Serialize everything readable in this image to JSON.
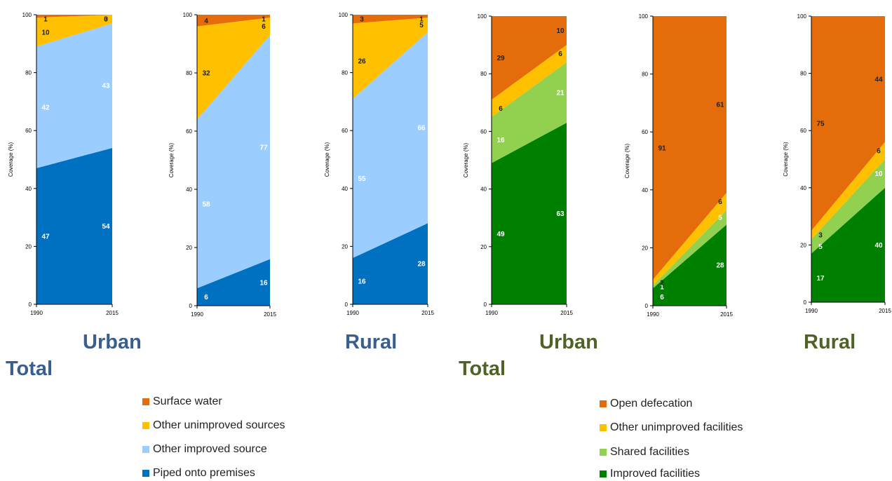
{
  "colors": {
    "surface_water": "#e46c0a",
    "other_unimproved_sources": "#ffc000",
    "other_improved_source": "#9ccdff",
    "piped_onto_premises": "#0070c0",
    "open_defecation": "#e46c0a",
    "other_unimproved_facilities": "#ffc000",
    "shared_facilities": "#92d050",
    "improved_facilities": "#008000"
  },
  "captions": {
    "water_urban": "Urban",
    "water_rural": "Rural",
    "water_total": "Total",
    "sanitation_urban": "Urban",
    "sanitation_rural": "Rural",
    "sanitation_total": "Total"
  },
  "legends": {
    "water": [
      "Surface water",
      "Other unimproved sources",
      "Other improved source",
      "Piped onto premises"
    ],
    "sanitation": [
      "Open defecation",
      "Other unimproved facilities",
      "Shared facilities",
      "Improved facilities"
    ]
  },
  "chart_data": [
    {
      "type": "area",
      "stacked": true,
      "ylabel": "Coverage (%)",
      "x": [
        "1990",
        "2015"
      ],
      "ylim": [
        0,
        100
      ],
      "yticks": [
        "0",
        "20",
        "40",
        "60",
        "80",
        "100"
      ],
      "series": [
        {
          "name": "Piped onto premises",
          "values": [
            47,
            54
          ],
          "labels": [
            "47",
            "54"
          ]
        },
        {
          "name": "Other improved source",
          "values": [
            42,
            43
          ],
          "labels": [
            "42",
            "43"
          ]
        },
        {
          "name": "Other unimproved sources",
          "values": [
            10,
            3
          ],
          "labels": [
            "10",
            "3"
          ]
        },
        {
          "name": "Surface water",
          "values": [
            1,
            0
          ],
          "labels": [
            "1",
            "0"
          ]
        }
      ]
    },
    {
      "type": "area",
      "stacked": true,
      "ylabel": "Coverage (%)",
      "x": [
        "1990",
        "2015"
      ],
      "ylim": [
        0,
        100
      ],
      "yticks": [
        "0",
        "20",
        "40",
        "60",
        "80",
        "100"
      ],
      "series": [
        {
          "name": "Piped onto premises",
          "values": [
            6,
            16
          ],
          "labels": [
            "6",
            "16"
          ]
        },
        {
          "name": "Other improved source",
          "values": [
            58,
            77
          ],
          "labels": [
            "58",
            "77"
          ]
        },
        {
          "name": "Other unimproved sources",
          "values": [
            32,
            6
          ],
          "labels": [
            "32",
            "6"
          ]
        },
        {
          "name": "Surface water",
          "values": [
            4,
            1
          ],
          "labels": [
            "4",
            "1"
          ]
        }
      ]
    },
    {
      "type": "area",
      "stacked": true,
      "ylabel": "Coverage (%)",
      "x": [
        "1990",
        "2015"
      ],
      "ylim": [
        0,
        100
      ],
      "yticks": [
        "0",
        "20",
        "40",
        "60",
        "80",
        "100"
      ],
      "series": [
        {
          "name": "Piped onto premises",
          "values": [
            16,
            28
          ],
          "labels": [
            "16",
            "28"
          ]
        },
        {
          "name": "Other improved source",
          "values": [
            55,
            66
          ],
          "labels": [
            "55",
            "66"
          ]
        },
        {
          "name": "Other unimproved sources",
          "values": [
            26,
            5
          ],
          "labels": [
            "26",
            "5"
          ]
        },
        {
          "name": "Surface water",
          "values": [
            3,
            1
          ],
          "labels": [
            "3",
            "1"
          ]
        }
      ]
    },
    {
      "type": "area",
      "stacked": true,
      "ylabel": "Coverage (%)",
      "x": [
        "1990",
        "2015"
      ],
      "ylim": [
        0,
        100
      ],
      "yticks": [
        "0",
        "20",
        "40",
        "60",
        "80",
        "100"
      ],
      "series": [
        {
          "name": "Improved facilities",
          "values": [
            49,
            63
          ],
          "labels": [
            "49",
            "63"
          ]
        },
        {
          "name": "Shared facilities",
          "values": [
            16,
            21
          ],
          "labels": [
            "16",
            "21"
          ]
        },
        {
          "name": "Other unimproved facilities",
          "values": [
            6,
            6
          ],
          "labels": [
            "6",
            "6"
          ]
        },
        {
          "name": "Open defecation",
          "values": [
            29,
            10
          ],
          "labels": [
            "29",
            "10"
          ]
        }
      ]
    },
    {
      "type": "area",
      "stacked": true,
      "ylabel": "Coverage (%)",
      "x": [
        "1990",
        "2015"
      ],
      "ylim": [
        0,
        100
      ],
      "yticks": [
        "0",
        "20",
        "40",
        "60",
        "80",
        "100"
      ],
      "series": [
        {
          "name": "Improved facilities",
          "values": [
            6,
            28
          ],
          "labels": [
            "6",
            "28"
          ]
        },
        {
          "name": "Shared facilities",
          "values": [
            1,
            5
          ],
          "labels": [
            "1",
            "5"
          ]
        },
        {
          "name": "Other unimproved facilities",
          "values": [
            2,
            6
          ],
          "labels": [
            "2",
            "6"
          ]
        },
        {
          "name": "Open defecation",
          "values": [
            91,
            61
          ],
          "labels": [
            "91",
            "61"
          ]
        }
      ]
    },
    {
      "type": "area",
      "stacked": true,
      "ylabel": "Coverage (%)",
      "x": [
        "1990",
        "2015"
      ],
      "ylim": [
        0,
        100
      ],
      "yticks": [
        "0",
        "20",
        "40",
        "60",
        "80",
        "100"
      ],
      "series": [
        {
          "name": "Improved facilities",
          "values": [
            17,
            40
          ],
          "labels": [
            "17",
            "40"
          ]
        },
        {
          "name": "Shared facilities",
          "values": [
            5,
            10
          ],
          "labels": [
            "5",
            "10"
          ]
        },
        {
          "name": "Other unimproved facilities",
          "values": [
            3,
            6
          ],
          "labels": [
            "3",
            "6"
          ]
        },
        {
          "name": "Open defecation",
          "values": [
            75,
            44
          ],
          "labels": [
            "75",
            "44"
          ]
        }
      ]
    }
  ]
}
